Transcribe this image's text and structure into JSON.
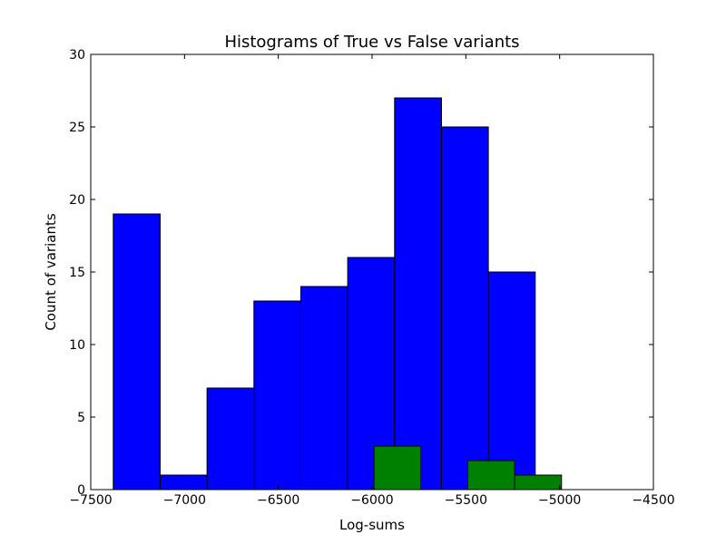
{
  "chart_data": {
    "type": "bar",
    "title": "Histograms of True vs False variants",
    "xlabel": "Log-sums",
    "ylabel": "Count of variants",
    "xlim": [
      -7500,
      -4500
    ],
    "ylim": [
      0,
      30
    ],
    "xticks": [
      -7500,
      -7000,
      -6500,
      -6000,
      -5500,
      -5000,
      -4500
    ],
    "yticks": [
      0,
      5,
      10,
      15,
      20,
      25,
      30
    ],
    "xtick_labels": [
      "−7500",
      "−7000",
      "−6500",
      "−6000",
      "−5500",
      "−5000",
      "−4500"
    ],
    "ytick_labels": [
      "0",
      "5",
      "10",
      "15",
      "20",
      "25",
      "30"
    ],
    "grid": false,
    "series": [
      {
        "color": "#0000ff",
        "bin_edges": [
          -7380,
          -7130,
          -6880,
          -6630,
          -6380,
          -6130,
          -5880,
          -5630,
          -5380,
          -5130
        ],
        "counts": [
          19,
          1,
          7,
          13,
          14,
          16,
          27,
          25,
          15
        ]
      },
      {
        "color": "#008000",
        "bin_edges": [
          -5990,
          -5740,
          -5490,
          -5240,
          -4990
        ],
        "counts": [
          3,
          0,
          2,
          1
        ]
      }
    ]
  }
}
